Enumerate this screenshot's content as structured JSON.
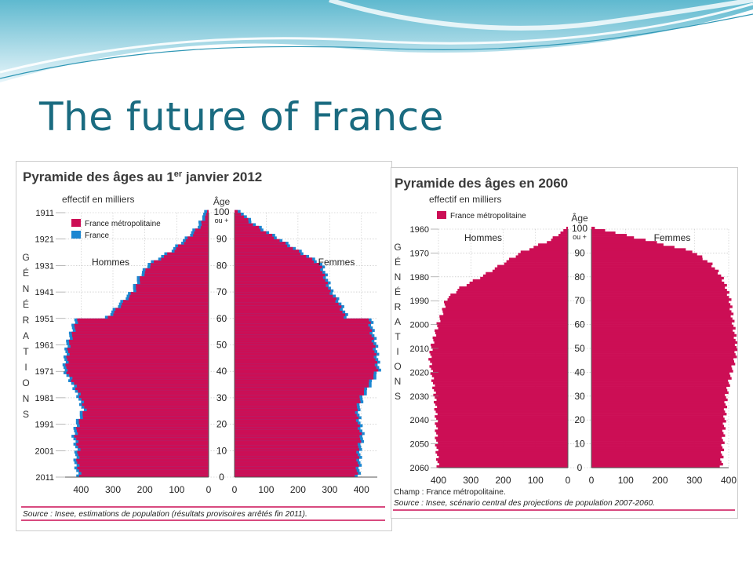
{
  "slide": {
    "title": "The future of France"
  },
  "colors": {
    "title": "#1a6b80",
    "metro": "#cc0e55",
    "france": "#1b86d1",
    "heading": "#3a3a3a",
    "wave": "#6fc5d9"
  },
  "chart_data": [
    {
      "type": "population-pyramid",
      "title": "Pyramide des âges au 1",
      "title_sup": "er",
      "title_suffix": " janvier 2012",
      "unit_label": "effectif en milliers",
      "age_label": "Âge",
      "vertical_label": "GÉNÉRATIONS",
      "legend": [
        {
          "name": "France métropolitaine",
          "color": "#cc0e55"
        },
        {
          "name": "France",
          "color": "#1b86d1"
        }
      ],
      "male_label": "Hommes",
      "female_label": "Femmes",
      "x_ticks": [
        "400",
        "300",
        "200",
        "100",
        "0",
        "0",
        "100",
        "200",
        "300",
        "400"
      ],
      "age_ticks": [
        "100\nou +",
        "90",
        "80",
        "70",
        "60",
        "50",
        "40",
        "30",
        "20",
        "10",
        "0"
      ],
      "generation_ticks": [
        "1911",
        "1921",
        "1931",
        "1941",
        "1951",
        "1961",
        "1971",
        "1981",
        "1991",
        "2001",
        "2011"
      ],
      "source": "Source : Insee, estimations de population (résultats provisoires arrêtés fin 2011).",
      "age_range": [
        0,
        100
      ],
      "x_max": 450,
      "series": [
        {
          "name": "Hommes",
          "ages": [
            0,
            5,
            10,
            15,
            20,
            25,
            30,
            35,
            40,
            45,
            50,
            55,
            59,
            60,
            65,
            70,
            75,
            80,
            85,
            90,
            95,
            100
          ],
          "values": [
            400,
            410,
            405,
            415,
            405,
            385,
            400,
            420,
            445,
            440,
            435,
            420,
            410,
            310,
            270,
            230,
            210,
            180,
            110,
            60,
            20,
            5
          ]
        },
        {
          "name": "Femmes",
          "ages": [
            0,
            5,
            10,
            15,
            20,
            25,
            30,
            35,
            40,
            45,
            50,
            55,
            59,
            60,
            65,
            70,
            75,
            80,
            85,
            90,
            95,
            100
          ],
          "values": [
            385,
            390,
            390,
            400,
            390,
            385,
            400,
            425,
            450,
            445,
            440,
            430,
            425,
            350,
            330,
            300,
            285,
            270,
            200,
            130,
            60,
            10
          ]
        }
      ]
    },
    {
      "type": "population-pyramid",
      "title": "Pyramide des âges en 2060",
      "unit_label": "effectif en milliers",
      "age_label": "Âge",
      "vertical_label": "GÉNÉRATIONS",
      "legend": [
        {
          "name": "France métropolitaine",
          "color": "#cc0e55"
        }
      ],
      "male_label": "Hommes",
      "female_label": "Femmes",
      "x_ticks": [
        "400",
        "300",
        "200",
        "100",
        "0",
        "0",
        "100",
        "200",
        "300",
        "400"
      ],
      "age_ticks": [
        "100\nou +",
        "90",
        "80",
        "70",
        "60",
        "50",
        "40",
        "30",
        "20",
        "10",
        "0"
      ],
      "generation_ticks": [
        "1960",
        "1970",
        "1980",
        "1990",
        "2000",
        "2010",
        "2020",
        "2030",
        "2040",
        "2050",
        "2060"
      ],
      "source_lines": [
        "Champ : France métropolitaine.",
        "Source : Insee, scénario central des projections de population 2007-2060."
      ],
      "age_range": [
        0,
        100
      ],
      "x_max": 400,
      "series": [
        {
          "name": "Hommes",
          "ages": [
            0,
            10,
            20,
            30,
            40,
            45,
            50,
            55,
            60,
            65,
            70,
            75,
            80,
            85,
            90,
            95,
            100
          ],
          "values": [
            400,
            405,
            405,
            410,
            420,
            425,
            420,
            410,
            400,
            385,
            375,
            330,
            260,
            200,
            140,
            50,
            5
          ]
        },
        {
          "name": "Femmes",
          "ages": [
            0,
            10,
            20,
            30,
            40,
            45,
            50,
            55,
            60,
            65,
            70,
            75,
            80,
            85,
            90,
            95,
            100
          ],
          "values": [
            380,
            385,
            390,
            395,
            410,
            420,
            425,
            420,
            415,
            410,
            405,
            395,
            380,
            350,
            300,
            160,
            10
          ]
        }
      ]
    }
  ]
}
